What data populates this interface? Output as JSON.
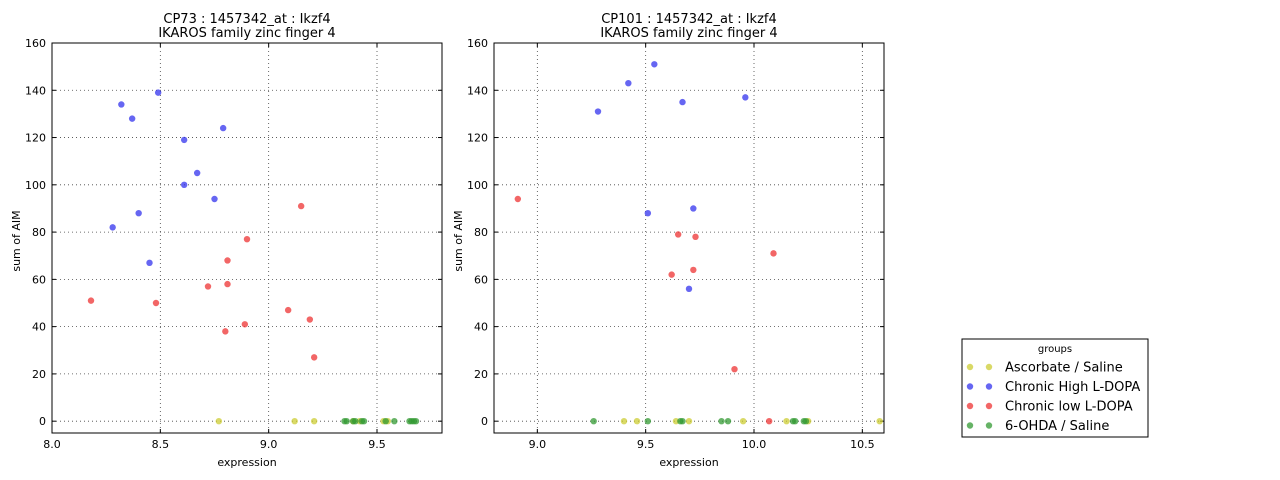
{
  "chart_data": [
    {
      "type": "scatter",
      "title": "CP73 : 1457342_at : Ikzf4",
      "subtitle": "IKAROS family zinc finger 4",
      "xlabel": "expression",
      "ylabel": "sum of AIM",
      "xlim": [
        8.0,
        9.8
      ],
      "ylim": [
        -5,
        160
      ],
      "xticks": [
        8.0,
        8.5,
        9.0,
        9.5
      ],
      "xtick_labels": [
        "8.0",
        "8.5",
        "9.0",
        "9.5"
      ],
      "yticks": [
        0,
        20,
        40,
        60,
        80,
        100,
        120,
        140,
        160
      ],
      "grid": true,
      "series": [
        {
          "name": "Ascorbate / Saline",
          "color": "#cccc33",
          "x": [
            8.77,
            9.12,
            9.21,
            9.39,
            9.42,
            9.53,
            9.55
          ],
          "y": [
            0,
            0,
            0,
            0,
            0,
            0,
            0
          ]
        },
        {
          "name": "Chronic High L-DOPA",
          "color": "#3333ee",
          "x": [
            8.32,
            8.37,
            8.49,
            8.61,
            8.79,
            8.67,
            8.61,
            8.75,
            8.4,
            8.28,
            8.45
          ],
          "y": [
            134,
            128,
            139,
            119,
            124,
            105,
            100,
            94,
            88,
            82,
            67
          ]
        },
        {
          "name": "Chronic low L-DOPA",
          "color": "#ee3333",
          "x": [
            8.18,
            8.48,
            8.72,
            8.81,
            8.81,
            8.9,
            9.15,
            9.09,
            8.8,
            8.89,
            9.19,
            9.21
          ],
          "y": [
            51,
            50,
            57,
            68,
            58,
            77,
            91,
            47,
            38,
            41,
            43,
            27
          ]
        },
        {
          "name": "6-OHDA / Saline",
          "color": "#339933",
          "x": [
            9.35,
            9.36,
            9.39,
            9.4,
            9.43,
            9.44,
            9.54,
            9.58,
            9.65,
            9.66,
            9.67,
            9.68
          ],
          "y": [
            0,
            0,
            0,
            0,
            0,
            0,
            0,
            0,
            0,
            0,
            0,
            0
          ]
        }
      ]
    },
    {
      "type": "scatter",
      "title": "CP101 : 1457342_at : Ikzf4",
      "subtitle": "IKAROS family zinc finger 4",
      "xlabel": "expression",
      "ylabel": "sum of AIM",
      "xlim": [
        8.8,
        10.6
      ],
      "ylim": [
        -5,
        160
      ],
      "xticks": [
        9.0,
        9.5,
        10.0,
        10.5
      ],
      "xtick_labels": [
        "9.0",
        "9.5",
        "10.0",
        "10.5"
      ],
      "yticks": [
        0,
        20,
        40,
        60,
        80,
        100,
        120,
        140,
        160
      ],
      "grid": true,
      "series": [
        {
          "name": "Ascorbate / Saline",
          "color": "#cccc33",
          "x": [
            9.4,
            9.46,
            9.64,
            9.7,
            9.95,
            10.15,
            10.25,
            10.58
          ],
          "y": [
            0,
            0,
            0,
            0,
            0,
            0,
            0,
            0
          ]
        },
        {
          "name": "Chronic High L-DOPA",
          "color": "#3333ee",
          "x": [
            9.54,
            9.42,
            9.28,
            9.67,
            9.96,
            9.51,
            9.72,
            9.7
          ],
          "y": [
            151,
            143,
            131,
            135,
            137,
            88,
            90,
            56
          ]
        },
        {
          "name": "Chronic low L-DOPA",
          "color": "#ee3333",
          "x": [
            8.91,
            9.65,
            9.73,
            9.62,
            9.72,
            10.09,
            9.91,
            10.07
          ],
          "y": [
            94,
            79,
            78,
            62,
            64,
            71,
            22,
            0
          ]
        },
        {
          "name": "6-OHDA / Saline",
          "color": "#339933",
          "x": [
            9.26,
            9.51,
            9.66,
            9.67,
            9.85,
            9.88,
            10.18,
            10.19,
            10.23,
            10.24
          ],
          "y": [
            0,
            0,
            0,
            0,
            0,
            0,
            0,
            0,
            0,
            0
          ]
        }
      ]
    }
  ],
  "legend": {
    "title": "groups",
    "placement": "bottom-right",
    "entries": [
      {
        "label": "Ascorbate / Saline",
        "color": "#cccc33"
      },
      {
        "label": "Chronic High L-DOPA",
        "color": "#3333ee"
      },
      {
        "label": "Chronic low L-DOPA",
        "color": "#ee3333"
      },
      {
        "label": "6-OHDA / Saline",
        "color": "#339933"
      }
    ]
  }
}
